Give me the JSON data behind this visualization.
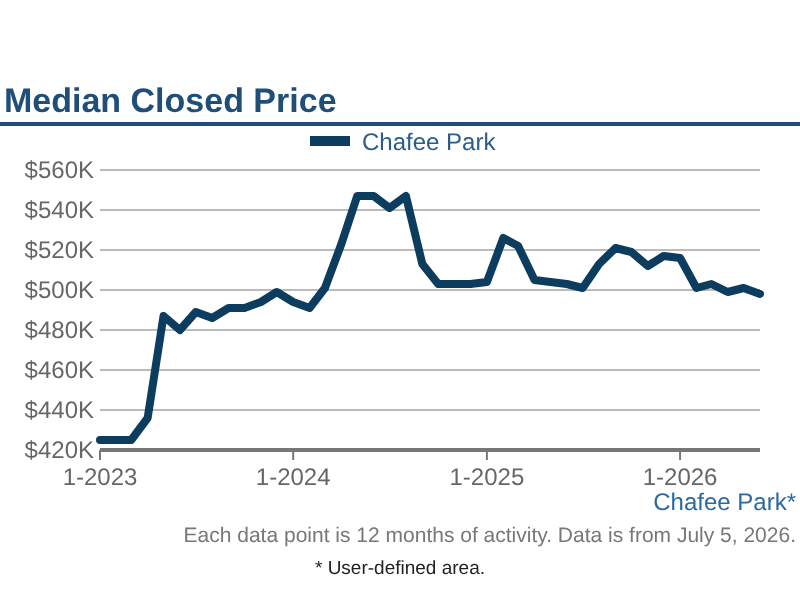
{
  "chart_data": {
    "type": "line",
    "title": "Median Closed Price",
    "x": [
      "2023-01",
      "2023-02",
      "2023-03",
      "2023-04",
      "2023-05",
      "2023-06",
      "2023-07",
      "2023-08",
      "2023-09",
      "2023-10",
      "2023-11",
      "2023-12",
      "2024-01",
      "2024-02",
      "2024-03",
      "2024-04",
      "2024-05",
      "2024-06",
      "2024-07",
      "2024-08",
      "2024-09",
      "2024-10",
      "2024-11",
      "2024-12",
      "2025-01",
      "2025-02",
      "2025-03",
      "2025-04",
      "2025-05",
      "2025-06",
      "2025-07",
      "2025-08",
      "2025-09",
      "2025-10",
      "2025-11",
      "2025-12",
      "2026-01",
      "2026-02",
      "2026-03",
      "2026-04",
      "2026-05",
      "2026-06"
    ],
    "series": [
      {
        "name": "Chafee Park",
        "color": "#0d3d5e",
        "values": [
          425000,
          425000,
          425000,
          436000,
          487000,
          480000,
          489000,
          486000,
          491000,
          491000,
          494000,
          499000,
          494000,
          491000,
          501000,
          523000,
          547000,
          547000,
          541000,
          547000,
          513000,
          503000,
          503000,
          503000,
          504000,
          526000,
          522000,
          505000,
          504000,
          503000,
          501000,
          513000,
          521000,
          519000,
          512000,
          517000,
          516000,
          501000,
          503000,
          499000,
          501000,
          498000
        ]
      }
    ],
    "xlim": [
      "2023-01",
      "2026-06"
    ],
    "xticks": [
      {
        "value": "2023-01",
        "label": "1-2023"
      },
      {
        "value": "2024-01",
        "label": "1-2024"
      },
      {
        "value": "2025-01",
        "label": "1-2025"
      },
      {
        "value": "2026-01",
        "label": "1-2026"
      }
    ],
    "ylim": [
      420000,
      560000
    ],
    "yticks": [
      {
        "value": 420000,
        "label": "$420K"
      },
      {
        "value": 440000,
        "label": "$440K"
      },
      {
        "value": 460000,
        "label": "$460K"
      },
      {
        "value": 480000,
        "label": "$480K"
      },
      {
        "value": 500000,
        "label": "$500K"
      },
      {
        "value": 520000,
        "label": "$520K"
      },
      {
        "value": 540000,
        "label": "$540K"
      },
      {
        "value": 560000,
        "label": "$560K"
      }
    ],
    "grid": "y",
    "legend": "top",
    "marker": "none",
    "line_style": "solid",
    "annotations": [
      "Chafee Park*",
      "Each data point is 12 months of activity. Data is from July 5, 2026.",
      "* User-defined area."
    ]
  }
}
